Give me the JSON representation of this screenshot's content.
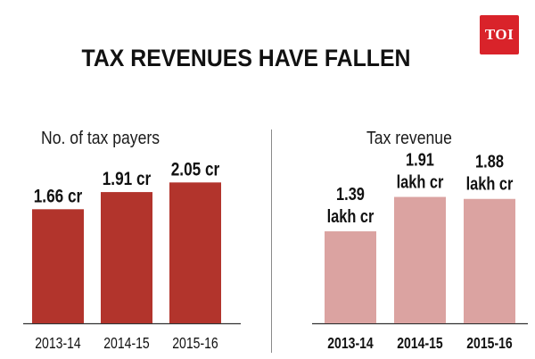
{
  "header": {
    "title": "TAX REVENUES HAVE FALLEN",
    "logo_text": "TOI"
  },
  "colors": {
    "left_bar": "#b2342c",
    "right_bar": "#dba3a1",
    "axis": "#333333",
    "logo_bg": "#d9232a"
  },
  "chart_data": [
    {
      "type": "bar",
      "title": "No. of tax payers",
      "categories": [
        "2013-14",
        "2014-15",
        "2015-16"
      ],
      "values": [
        1.66,
        1.91,
        2.05
      ],
      "value_labels": [
        "1.66 cr",
        "1.91 cr",
        "2.05 cr"
      ],
      "unit": "cr",
      "ylim": [
        0,
        2.6
      ],
      "grid": false,
      "legend": "none"
    },
    {
      "type": "bar",
      "title": "Tax revenue",
      "categories": [
        "2013-14",
        "2014-15",
        "2015-16"
      ],
      "values": [
        1.39,
        1.91,
        1.88
      ],
      "value_labels": [
        [
          "1.39",
          "lakh cr"
        ],
        [
          "1.91",
          "lakh cr"
        ],
        [
          "1.88",
          "lakh cr"
        ]
      ],
      "unit": "lakh cr",
      "ylim": [
        0,
        2.7
      ],
      "grid": false,
      "legend": "none"
    }
  ]
}
